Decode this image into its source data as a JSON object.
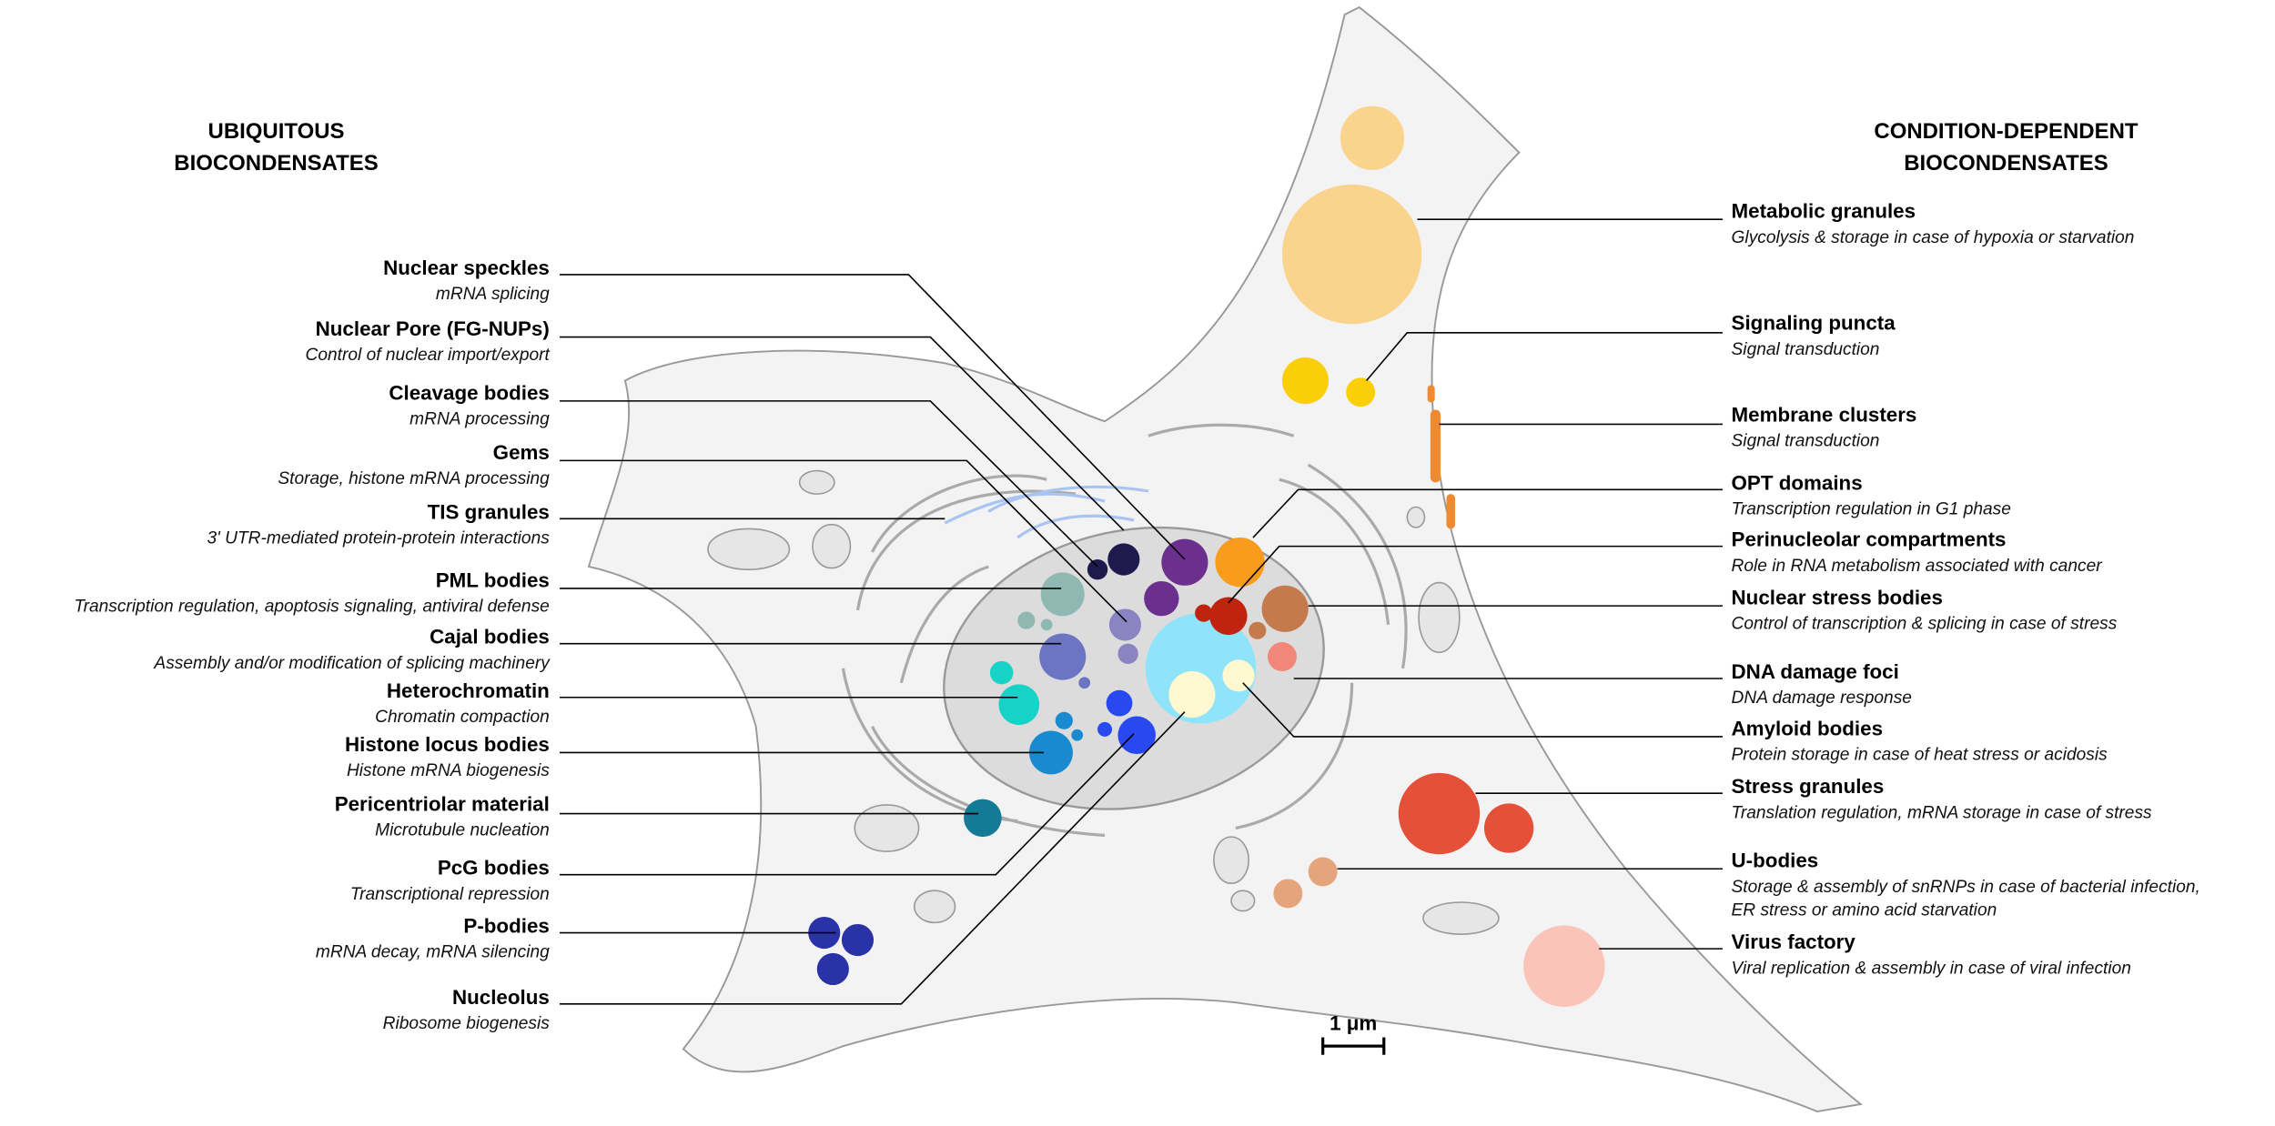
{
  "left_heading": [
    "UBIQUITOUS",
    "BIOCONDENSATES"
  ],
  "right_heading": [
    "CONDITION-DEPENDENT",
    "BIOCONDENSATES"
  ],
  "left_items": [
    {
      "name": "Nuclear speckles",
      "description": [
        "mRNA splicing"
      ]
    },
    {
      "name": "Nuclear Pore (FG-NUPs)",
      "description": [
        "Control of nuclear import/export"
      ]
    },
    {
      "name": "Cleavage bodies",
      "description": [
        "mRNA processing"
      ]
    },
    {
      "name": "Gems",
      "description": [
        "Storage, histone mRNA processing"
      ]
    },
    {
      "name": "TIS granules",
      "description": [
        "3' UTR-mediated protein-protein interactions"
      ]
    },
    {
      "name": "PML bodies",
      "description": [
        "Transcription regulation, apoptosis signaling, antiviral defense"
      ]
    },
    {
      "name": "Cajal bodies",
      "description": [
        "Assembly and/or modification of splicing machinery"
      ]
    },
    {
      "name": "Heterochromatin",
      "description": [
        "Chromatin compaction"
      ]
    },
    {
      "name": "Histone locus bodies",
      "description": [
        "Histone mRNA biogenesis"
      ]
    },
    {
      "name": "Pericentriolar material",
      "description": [
        "Microtubule nucleation"
      ]
    },
    {
      "name": "PcG bodies",
      "description": [
        "Transcriptional repression"
      ]
    },
    {
      "name": "P-bodies",
      "description": [
        "mRNA decay, mRNA silencing"
      ]
    },
    {
      "name": "Nucleolus",
      "description": [
        "Ribosome biogenesis"
      ]
    }
  ],
  "right_items": [
    {
      "name": "Metabolic granules",
      "description": [
        "Glycolysis & storage in case of hypoxia or starvation"
      ]
    },
    {
      "name": "Signaling puncta",
      "description": [
        "Signal transduction"
      ]
    },
    {
      "name": "Membrane clusters",
      "description": [
        "Signal transduction"
      ]
    },
    {
      "name": "OPT domains",
      "description": [
        "Transcription regulation in G1 phase"
      ]
    },
    {
      "name": "Perinucleolar compartments",
      "description": [
        "Role in RNA metabolism associated with cancer"
      ]
    },
    {
      "name": "Nuclear stress bodies",
      "description": [
        "Control of transcription & splicing in case of stress"
      ]
    },
    {
      "name": "DNA damage foci",
      "description": [
        "DNA damage response"
      ]
    },
    {
      "name": "Amyloid bodies",
      "description": [
        "Protein storage in case of heat stress or acidosis"
      ]
    },
    {
      "name": "Stress granules",
      "description": [
        "Translation regulation, mRNA storage in case of stress"
      ]
    },
    {
      "name": "U-bodies",
      "description": [
        "Storage & assembly of snRNPs in case of bacterial infection,",
        "ER stress or amino acid starvation"
      ]
    },
    {
      "name": "Virus factory",
      "description": [
        "Viral replication & assembly in case of viral infection"
      ]
    }
  ],
  "scale_bar": "1 μm"
}
